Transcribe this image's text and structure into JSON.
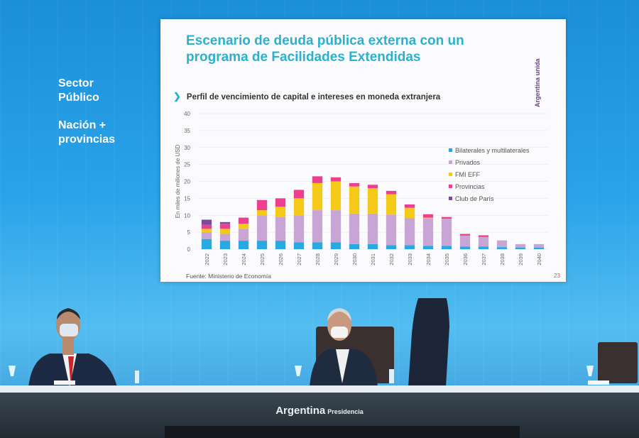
{
  "side": {
    "line1": "Sector",
    "line2": "Público",
    "line3": "Nación +",
    "line4": "provincias"
  },
  "slide": {
    "title_line1": "Escenario de deuda pública externa con un",
    "title_line2": "programa de Facilidades Extendidas",
    "brand": "Argentina unida",
    "subtitle": "Perfil de vencimiento de capital e intereses en moneda extranjera",
    "source": "Fuente: Ministerio de Economía",
    "page_number": "23"
  },
  "table_brand": {
    "main": "Argentina",
    "sub": "Presidencia"
  },
  "colors": {
    "title": "#2bb0ce",
    "bilaterales": "#29a9e1",
    "privados": "#c7a6d6",
    "fmi": "#f5c918",
    "provincias": "#ec3f8f",
    "club": "#7a4b9d"
  },
  "chart_data": {
    "type": "bar",
    "stacked": true,
    "ylabel": "En miles de millones de USD",
    "ylim": [
      0,
      40
    ],
    "yticks": [
      "0",
      "5",
      "10",
      "15",
      "20",
      "25",
      "30",
      "35",
      "40"
    ],
    "categories": [
      "2022",
      "2023",
      "2024",
      "2025",
      "2026",
      "2027",
      "2028",
      "2029",
      "2030",
      "2031",
      "2032",
      "2033",
      "2034",
      "2035",
      "2036",
      "2037",
      "2038",
      "2039",
      "2040"
    ],
    "series": [
      {
        "name": "Bilaterales y multilaterales",
        "color": "#29a9e1",
        "values": [
          3,
          2.5,
          2.5,
          2.5,
          2.5,
          2,
          2,
          2,
          1.5,
          1.5,
          1.2,
          1.2,
          1,
          1,
          0.8,
          0.8,
          0.6,
          0.5,
          0.5
        ]
      },
      {
        "name": "Privados",
        "color": "#c7a6d6",
        "values": [
          2,
          2,
          3.5,
          7.5,
          7,
          8,
          9.5,
          9.5,
          9,
          9,
          9,
          8,
          8,
          8,
          3.2,
          2.8,
          2,
          1,
          1
        ]
      },
      {
        "name": "FMI EFF",
        "color": "#f5c918",
        "values": [
          1,
          1.5,
          1.5,
          1.5,
          3,
          5,
          8,
          8.5,
          8,
          7.5,
          6,
          3,
          0.3,
          0,
          0,
          0,
          0,
          0,
          0
        ]
      },
      {
        "name": "Provincias",
        "color": "#ec3f8f",
        "values": [
          1.2,
          1.5,
          1.8,
          3,
          2.5,
          2.5,
          2,
          1.2,
          1,
          1,
          1,
          1,
          1,
          0.5,
          0.5,
          0.5,
          0,
          0,
          0
        ]
      },
      {
        "name": "Club de París",
        "color": "#7a4b9d",
        "values": [
          1.5,
          0.5,
          0,
          0,
          0,
          0,
          0,
          0,
          0,
          0,
          0,
          0,
          0,
          0,
          0,
          0,
          0,
          0,
          0
        ]
      }
    ],
    "legend_position": "right"
  }
}
